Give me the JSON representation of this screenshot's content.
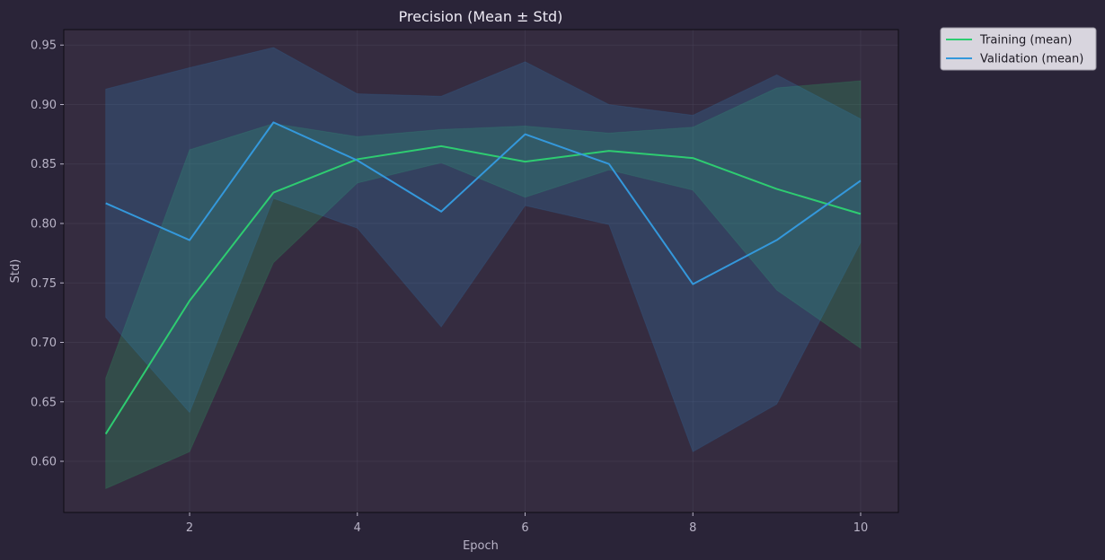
{
  "chart_data": {
    "type": "line",
    "title": "Precision (Mean ± Std)",
    "xlabel": "Epoch",
    "ylabel": "Std)",
    "x": [
      1,
      2,
      3,
      4,
      5,
      6,
      7,
      8,
      9,
      10
    ],
    "xlim": [
      0.5,
      10.45
    ],
    "ylim": [
      0.557,
      0.963
    ],
    "xticks": [
      2,
      4,
      6,
      8,
      10
    ],
    "yticks": [
      0.6,
      0.65,
      0.7,
      0.75,
      0.8,
      0.85,
      0.9,
      0.95
    ],
    "grid": true,
    "legend_position": "outside-top-right",
    "series": [
      {
        "name": "Training (mean)",
        "color": "#2ecc71",
        "values": [
          0.623,
          0.735,
          0.826,
          0.854,
          0.865,
          0.852,
          0.861,
          0.855,
          0.829,
          0.808
        ],
        "upper": [
          0.67,
          0.862,
          0.884,
          0.873,
          0.879,
          0.882,
          0.876,
          0.881,
          0.914,
          0.92
        ],
        "lower": [
          0.577,
          0.608,
          0.767,
          0.834,
          0.851,
          0.822,
          0.845,
          0.828,
          0.744,
          0.695
        ]
      },
      {
        "name": "Validation (mean)",
        "color": "#3498db",
        "values": [
          0.817,
          0.786,
          0.885,
          0.853,
          0.81,
          0.875,
          0.85,
          0.749,
          0.786,
          0.836
        ],
        "upper": [
          0.913,
          0.931,
          0.948,
          0.909,
          0.907,
          0.936,
          0.9,
          0.891,
          0.925,
          0.888
        ],
        "lower": [
          0.721,
          0.641,
          0.821,
          0.796,
          0.713,
          0.815,
          0.799,
          0.608,
          0.648,
          0.784
        ]
      }
    ],
    "colors": {
      "figure_bg": "#2a2438",
      "axes_bg": "#352c40",
      "axes_border": "#0f0d14",
      "grid": "#4a4258",
      "text": "#b9b4c7",
      "title": "#ece9f3",
      "legend_bg": "#d8d5de"
    }
  }
}
